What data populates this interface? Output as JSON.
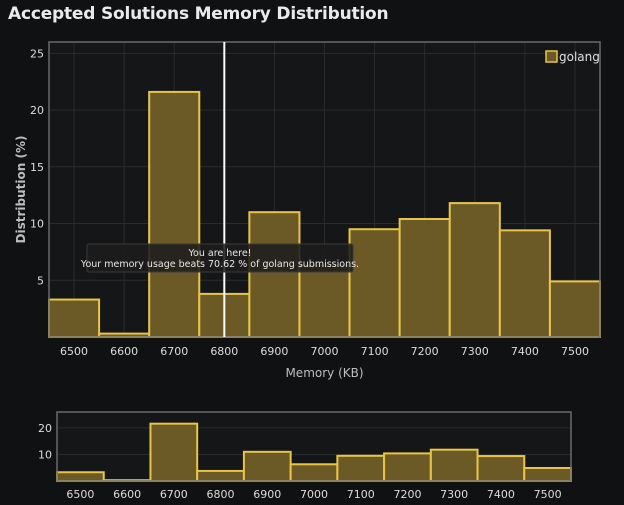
{
  "title": "Accepted Solutions Memory Distribution",
  "chart_data": [
    {
      "type": "bar",
      "histogram": true,
      "title": "Accepted Solutions Memory Distribution",
      "xlabel": "Memory (KB)",
      "ylabel": "Distribution (%)",
      "bin_width": 100,
      "bins": [
        6500,
        6600,
        6700,
        6800,
        6900,
        7000,
        7100,
        7200,
        7300,
        7400,
        7500
      ],
      "values": [
        3.3,
        0.3,
        21.6,
        3.8,
        11.0,
        6.3,
        9.5,
        10.4,
        11.8,
        9.4,
        4.9
      ],
      "xlim": [
        6450,
        7550
      ],
      "ylim": [
        0,
        26
      ],
      "xticks": [
        6500,
        6600,
        6700,
        6800,
        6900,
        7000,
        7100,
        7200,
        7300,
        7400,
        7500
      ],
      "yticks": [
        5,
        10,
        15,
        20,
        25
      ],
      "series": [
        {
          "name": "golang"
        }
      ],
      "legend": "top-right",
      "grid": true,
      "marker_x": 6800,
      "annotation": {
        "line1": "You are here!",
        "line2": "Your memory usage beats 70.62 % of golang submissions."
      },
      "colors": {
        "fill": "#6b5a26",
        "stroke": "#e8c547",
        "marker": "#ffffff"
      }
    },
    {
      "type": "bar",
      "histogram": true,
      "role": "overview",
      "bins": [
        6500,
        6600,
        6700,
        6800,
        6900,
        7000,
        7100,
        7200,
        7300,
        7400,
        7500
      ],
      "values": [
        3.3,
        0.3,
        21.6,
        3.8,
        11.0,
        6.3,
        9.5,
        10.4,
        11.8,
        9.4,
        4.9
      ],
      "xticks": [
        6500,
        6600,
        6700,
        6800,
        6900,
        7000,
        7100,
        7200,
        7300,
        7400,
        7500
      ],
      "yticks": [
        10,
        20
      ],
      "ylim": [
        0,
        26
      ]
    }
  ]
}
